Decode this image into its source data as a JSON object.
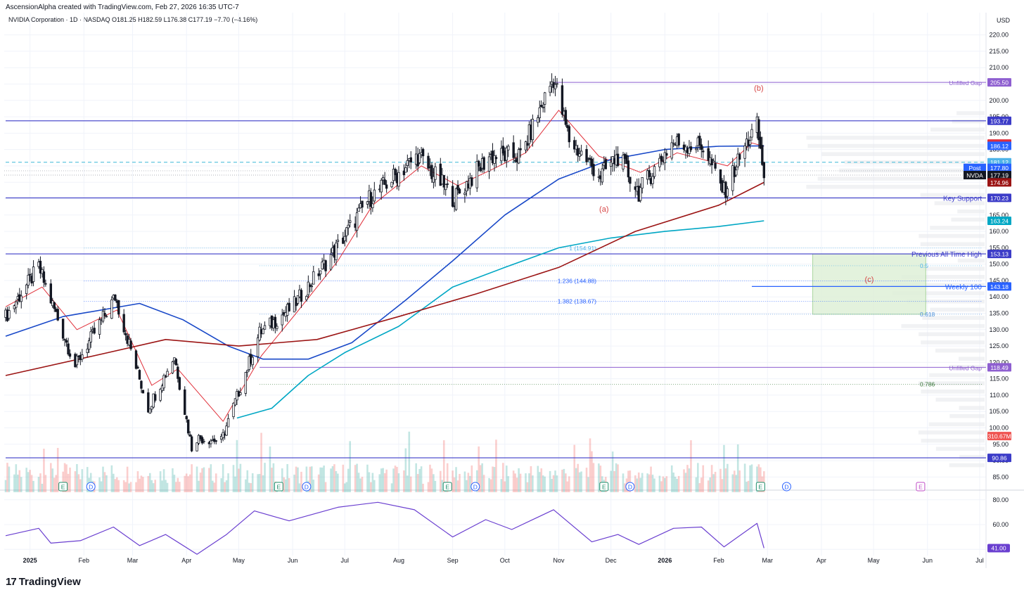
{
  "header": {
    "attribution": "AscensionAlpha created with TradingView.com, Feb 27, 2026 16:35 UTC-7",
    "symbol_line": "NVIDIA Corporation · 1D · NASDAQ   O181.25   H182.59   L176.38   C177.19   −7.70 (−4.16%)"
  },
  "footer": {
    "brand": "TradingView",
    "logo_glyph": "17"
  },
  "colors": {
    "up": "#26a69a",
    "down": "#ef5350",
    "candle": "#131722",
    "ema_fast": "#e0303a",
    "ma_blue": "#1848c8",
    "ma_cyan": "#00a7c4",
    "ma_red": "#9b1414",
    "level_line": "#3c3cc8",
    "gap_line": "#8e5fd0",
    "rsi": "#6a3fd0",
    "fib": "#2962ff",
    "zone": "#dff0d8",
    "zone_border": "#9ccf8f"
  },
  "chart_data": [
    {
      "type": "line",
      "title": "NVIDIA Corporation · 1D · NASDAQ",
      "ylabel": "USD",
      "ylim": [
        82.5,
        222.5
      ],
      "price_scale": "linear",
      "y_ticks": [
        85,
        90,
        95,
        100,
        105,
        110,
        115,
        120,
        125,
        130,
        135,
        140,
        145,
        150,
        155,
        160,
        165,
        170,
        175,
        180,
        185,
        190,
        195,
        200,
        205,
        210,
        215,
        220
      ],
      "x_months": [
        {
          "label": "2025",
          "bold": true,
          "date": "2025-01-01"
        },
        {
          "label": "Feb",
          "date": "2025-02-01"
        },
        {
          "label": "Mar",
          "date": "2025-03-01"
        },
        {
          "label": "Apr",
          "date": "2025-04-01"
        },
        {
          "label": "May",
          "date": "2025-05-01"
        },
        {
          "label": "Jun",
          "date": "2025-06-01"
        },
        {
          "label": "Jul",
          "date": "2025-07-01"
        },
        {
          "label": "Aug",
          "date": "2025-08-01"
        },
        {
          "label": "Sep",
          "date": "2025-09-01"
        },
        {
          "label": "Oct",
          "date": "2025-10-01"
        },
        {
          "label": "Nov",
          "date": "2025-11-01"
        },
        {
          "label": "Dec",
          "date": "2025-12-01"
        },
        {
          "label": "2026",
          "bold": true,
          "date": "2026-01-01"
        },
        {
          "label": "Feb",
          "date": "2026-02-01"
        },
        {
          "label": "Mar",
          "date": "2026-03-01"
        },
        {
          "label": "Apr",
          "date": "2026-04-01"
        },
        {
          "label": "May",
          "date": "2026-05-01"
        },
        {
          "label": "Jun",
          "date": "2026-06-01"
        },
        {
          "label": "Jul",
          "date": "2026-07-01"
        }
      ],
      "close_path": [
        {
          "date": "2024-12-18",
          "price": 134
        },
        {
          "date": "2025-01-06",
          "price": 149
        },
        {
          "date": "2025-01-27",
          "price": 119
        },
        {
          "date": "2025-02-19",
          "price": 140
        },
        {
          "date": "2025-03-10",
          "price": 106
        },
        {
          "date": "2025-03-25",
          "price": 122
        },
        {
          "date": "2025-04-04",
          "price": 94
        },
        {
          "date": "2025-04-07",
          "price": 97
        },
        {
          "date": "2025-04-21",
          "price": 96
        },
        {
          "date": "2025-05-13",
          "price": 129
        },
        {
          "date": "2025-06-01",
          "price": 137
        },
        {
          "date": "2025-06-25",
          "price": 154
        },
        {
          "date": "2025-07-15",
          "price": 170
        },
        {
          "date": "2025-08-12",
          "price": 183
        },
        {
          "date": "2025-09-02",
          "price": 170
        },
        {
          "date": "2025-09-22",
          "price": 183
        },
        {
          "date": "2025-10-10",
          "price": 183
        },
        {
          "date": "2025-10-29",
          "price": 207
        },
        {
          "date": "2025-11-07",
          "price": 188
        },
        {
          "date": "2025-11-20",
          "price": 180
        },
        {
          "date": "2025-11-25",
          "price": 177
        },
        {
          "date": "2025-12-05",
          "price": 183
        },
        {
          "date": "2025-12-17",
          "price": 172
        },
        {
          "date": "2026-01-05",
          "price": 187
        },
        {
          "date": "2026-01-23",
          "price": 186
        },
        {
          "date": "2026-02-04",
          "price": 172
        },
        {
          "date": "2026-02-18",
          "price": 188
        },
        {
          "date": "2026-02-23",
          "price": 192
        },
        {
          "date": "2026-02-27",
          "price": 177.19
        }
      ],
      "series": [
        {
          "name": "",
          "color_key": "ema_fast",
          "points": [
            {
              "date": "2024-12-18",
              "price": 137
            },
            {
              "date": "2025-01-08",
              "price": 143
            },
            {
              "date": "2025-01-28",
              "price": 130
            },
            {
              "date": "2025-02-20",
              "price": 136
            },
            {
              "date": "2025-03-12",
              "price": 113
            },
            {
              "date": "2025-03-27",
              "price": 118
            },
            {
              "date": "2025-04-22",
              "price": 102
            },
            {
              "date": "2025-05-14",
              "price": 122
            },
            {
              "date": "2025-06-03",
              "price": 135
            },
            {
              "date": "2025-06-27",
              "price": 151
            },
            {
              "date": "2025-07-17",
              "price": 168
            },
            {
              "date": "2025-08-14",
              "price": 180
            },
            {
              "date": "2025-09-04",
              "price": 174
            },
            {
              "date": "2025-09-24",
              "price": 179
            },
            {
              "date": "2025-10-13",
              "price": 184
            },
            {
              "date": "2025-11-01",
              "price": 197
            },
            {
              "date": "2025-11-24",
              "price": 183
            },
            {
              "date": "2025-12-18",
              "price": 178
            },
            {
              "date": "2026-01-08",
              "price": 184
            },
            {
              "date": "2026-02-06",
              "price": 180
            },
            {
              "date": "2026-02-20",
              "price": 187
            },
            {
              "date": "2026-02-27",
              "price": 186
            }
          ]
        },
        {
          "name": "",
          "color_key": "ma_blue",
          "points": [
            {
              "date": "2024-12-18",
              "price": 128
            },
            {
              "date": "2025-01-20",
              "price": 134
            },
            {
              "date": "2025-03-05",
              "price": 138
            },
            {
              "date": "2025-03-30",
              "price": 133
            },
            {
              "date": "2025-04-25",
              "price": 125
            },
            {
              "date": "2025-05-15",
              "price": 121
            },
            {
              "date": "2025-06-10",
              "price": 121
            },
            {
              "date": "2025-07-05",
              "price": 126
            },
            {
              "date": "2025-08-05",
              "price": 139
            },
            {
              "date": "2025-09-01",
              "price": 151
            },
            {
              "date": "2025-10-01",
              "price": 165
            },
            {
              "date": "2025-11-01",
              "price": 176
            },
            {
              "date": "2025-12-01",
              "price": 182
            },
            {
              "date": "2026-01-01",
              "price": 185
            },
            {
              "date": "2026-02-01",
              "price": 186
            },
            {
              "date": "2026-02-27",
              "price": 186.12
            }
          ]
        },
        {
          "name": "",
          "color_key": "ma_cyan",
          "points": [
            {
              "date": "2025-04-30",
              "price": 103
            },
            {
              "date": "2025-05-20",
              "price": 106
            },
            {
              "date": "2025-06-10",
              "price": 116
            },
            {
              "date": "2025-07-01",
              "price": 123
            },
            {
              "date": "2025-08-01",
              "price": 131
            },
            {
              "date": "2025-09-01",
              "price": 143
            },
            {
              "date": "2025-10-01",
              "price": 149
            },
            {
              "date": "2025-11-01",
              "price": 155
            },
            {
              "date": "2025-12-01",
              "price": 158
            },
            {
              "date": "2026-01-01",
              "price": 160
            },
            {
              "date": "2026-02-01",
              "price": 161.5
            },
            {
              "date": "2026-02-27",
              "price": 163.24
            }
          ]
        },
        {
          "name": "",
          "color_key": "ma_red",
          "points": [
            {
              "date": "2024-12-18",
              "price": 116
            },
            {
              "date": "2025-02-15",
              "price": 123
            },
            {
              "date": "2025-03-20",
              "price": 127
            },
            {
              "date": "2025-05-01",
              "price": 125
            },
            {
              "date": "2025-06-15",
              "price": 127
            },
            {
              "date": "2025-08-01",
              "price": 134
            },
            {
              "date": "2025-09-15",
              "price": 141
            },
            {
              "date": "2025-11-01",
              "price": 149
            },
            {
              "date": "2025-12-15",
              "price": 160
            },
            {
              "date": "2026-02-01",
              "price": 168
            },
            {
              "date": "2026-02-27",
              "price": 174.96
            }
          ]
        }
      ],
      "horizontal_levels": [
        {
          "price": 193.77,
          "label": "",
          "badge": "193.77",
          "kind": "level",
          "date_from": "2024-12-18"
        },
        {
          "price": 170.23,
          "label": "Key Support",
          "badge": "170.23",
          "kind": "level",
          "date_from": "2024-12-18"
        },
        {
          "price": 153.13,
          "label": "Previous All Time High",
          "badge": "153.13",
          "kind": "level",
          "date_from": "2024-12-18"
        },
        {
          "price": 90.86,
          "label": "",
          "badge": "90.86",
          "kind": "level",
          "date_from": "2024-12-18"
        },
        {
          "price": 205.5,
          "label": "Unfilled Gap",
          "badge": "205.50",
          "kind": "gap",
          "date_from": "2025-10-29"
        },
        {
          "price": 118.49,
          "label": "Unfilled Gap",
          "badge": "118.49",
          "kind": "gap",
          "date_from": "2025-05-13"
        },
        {
          "price": 143.18,
          "label": "Weekly 100",
          "badge": "143.18",
          "kind": "weekly",
          "date_from": "2026-02-20"
        },
        {
          "price": 181.12,
          "label": "",
          "badge": "181.12",
          "kind": "dashed",
          "date_from": "2024-12-18"
        }
      ],
      "right_badges": [
        {
          "value": "186.84",
          "price": 186.84,
          "color": "#e0303a"
        },
        {
          "value": "186.12",
          "price": 186.12,
          "color": "#2962ff"
        },
        {
          "value": "177.80",
          "price": 179.4,
          "color": "#2962ff",
          "prefix": "Post"
        },
        {
          "value": "177.19",
          "price": 177.19,
          "color": "#131722",
          "prefix": "NVDA"
        },
        {
          "value": "174.96",
          "price": 174.96,
          "color": "#9b1414"
        },
        {
          "value": "163.24",
          "price": 163.24,
          "color": "#00a7c4"
        },
        {
          "value": "310.67M",
          "price": 97.5,
          "color": "#ef5350"
        }
      ],
      "fib_levels": [
        {
          "label": "1 (154.91)",
          "price": 154.91,
          "color": "#4fb3e8"
        },
        {
          "label": "1.236 (144.88)",
          "price": 144.88,
          "color": "#2962ff"
        },
        {
          "label": "1.382 (138.67)",
          "price": 138.67,
          "color": "#2962ff"
        }
      ],
      "retracement_levels": [
        {
          "label": "0.5",
          "price": 149.5,
          "color": "#4fb3e8"
        },
        {
          "label": "0.618",
          "price": 134.7,
          "color": "#4a8fd8"
        },
        {
          "label": "0.786",
          "price": 113.3,
          "color": "#3d7a3d"
        }
      ],
      "target_zone": {
        "label": "(c)",
        "date_from": "2026-03-27",
        "date_to": "2026-05-31",
        "price_top": 153.13,
        "price_bottom": 134.7
      },
      "wave_labels": [
        {
          "label": "(a)",
          "date": "2025-11-27",
          "price": 166
        },
        {
          "label": "(b)",
          "date": "2026-02-24",
          "price": 203
        }
      ],
      "earnings_markers": [
        {
          "label": "E",
          "date": "2025-01-20"
        },
        {
          "label": "D",
          "date": "2025-02-05"
        },
        {
          "label": "E",
          "date": "2025-05-24"
        },
        {
          "label": "D",
          "date": "2025-06-09"
        },
        {
          "label": "E",
          "date": "2025-08-29"
        },
        {
          "label": "D",
          "date": "2025-09-14"
        },
        {
          "label": "E",
          "date": "2025-11-27"
        },
        {
          "label": "D",
          "date": "2025-12-12"
        },
        {
          "label": "E",
          "date": "2026-02-25"
        },
        {
          "label": "D",
          "date": "2026-03-12"
        },
        {
          "label": "E",
          "date": "2026-05-28",
          "future": true
        }
      ]
    },
    {
      "type": "line",
      "title": "",
      "ylim": [
        35,
        85
      ],
      "y_ticks": [
        40,
        60,
        80
      ],
      "series": [
        {
          "name": "",
          "color_key": "rsi",
          "points": [
            {
              "date": "2024-12-18",
              "value": 51
            },
            {
              "date": "2025-01-06",
              "value": 57
            },
            {
              "date": "2025-01-13",
              "value": 45
            },
            {
              "date": "2025-01-30",
              "value": 47
            },
            {
              "date": "2025-02-18",
              "value": 58
            },
            {
              "date": "2025-03-05",
              "value": 43
            },
            {
              "date": "2025-03-20",
              "value": 52
            },
            {
              "date": "2025-04-07",
              "value": 36
            },
            {
              "date": "2025-04-24",
              "value": 52
            },
            {
              "date": "2025-05-10",
              "value": 71
            },
            {
              "date": "2025-05-30",
              "value": 63
            },
            {
              "date": "2025-06-27",
              "value": 74
            },
            {
              "date": "2025-07-20",
              "value": 78
            },
            {
              "date": "2025-08-10",
              "value": 72
            },
            {
              "date": "2025-09-01",
              "value": 50
            },
            {
              "date": "2025-09-20",
              "value": 64
            },
            {
              "date": "2025-10-05",
              "value": 56
            },
            {
              "date": "2025-10-29",
              "value": 72
            },
            {
              "date": "2025-11-20",
              "value": 46
            },
            {
              "date": "2025-12-05",
              "value": 52
            },
            {
              "date": "2025-12-17",
              "value": 44
            },
            {
              "date": "2026-01-06",
              "value": 57
            },
            {
              "date": "2026-01-22",
              "value": 58
            },
            {
              "date": "2026-02-04",
              "value": 42
            },
            {
              "date": "2026-02-23",
              "value": 61
            },
            {
              "date": "2026-02-27",
              "value": 41
            }
          ]
        }
      ],
      "badges": [
        {
          "value": "41.00",
          "color": "#6a3fd0"
        }
      ]
    }
  ]
}
